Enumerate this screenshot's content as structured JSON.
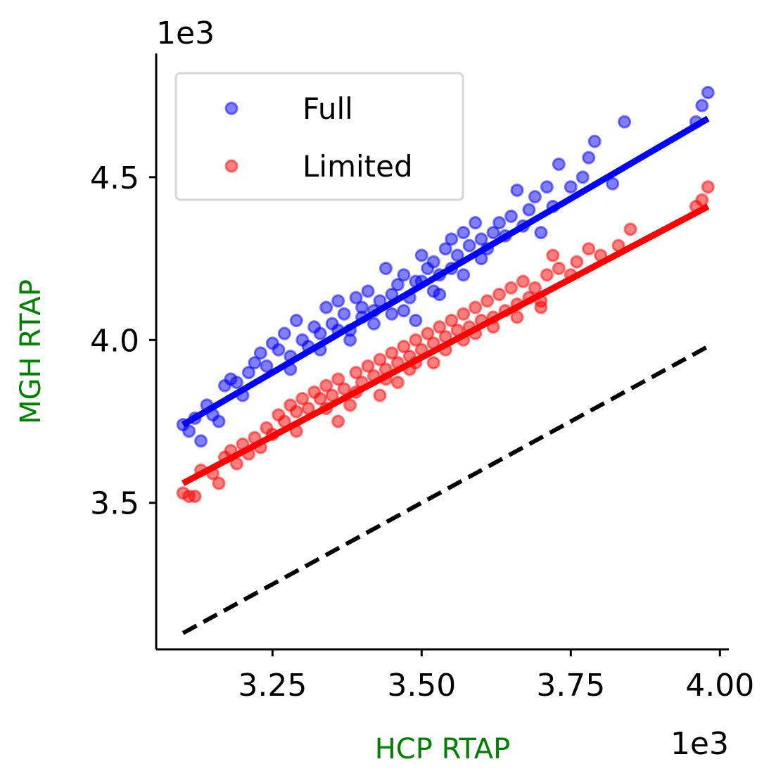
{
  "chart_data": {
    "type": "scatter",
    "xlabel": "HCP RTAP",
    "ylabel": "MGH RTAP",
    "x_offset_text": "1e3",
    "y_offset_text": "1e3",
    "axis_label_color": "#008000",
    "xlim": [
      3.055,
      4.015
    ],
    "ylim": [
      3.05,
      4.88
    ],
    "x_ticks": [
      {
        "value": 3.25,
        "label": "3.25"
      },
      {
        "value": 3.5,
        "label": "3.50"
      },
      {
        "value": 3.75,
        "label": "3.75"
      },
      {
        "value": 4.0,
        "label": "4.00"
      }
    ],
    "y_ticks": [
      {
        "value": 3.5,
        "label": "3.5"
      },
      {
        "value": 4.0,
        "label": "4.0"
      },
      {
        "value": 4.5,
        "label": "4.5"
      }
    ],
    "grid": false,
    "legend": {
      "placement": "top-left"
    },
    "series": [
      {
        "name": "Full",
        "color": "#0000ff",
        "fit": {
          "x": [
            3.1,
            3.98
          ],
          "y": [
            3.74,
            4.68
          ]
        },
        "points": [
          [
            3.1,
            3.74
          ],
          [
            3.11,
            3.72
          ],
          [
            3.12,
            3.76
          ],
          [
            3.13,
            3.69
          ],
          [
            3.14,
            3.8
          ],
          [
            3.15,
            3.77
          ],
          [
            3.16,
            3.75
          ],
          [
            3.17,
            3.86
          ],
          [
            3.18,
            3.88
          ],
          [
            3.19,
            3.87
          ],
          [
            3.2,
            3.83
          ],
          [
            3.21,
            3.9
          ],
          [
            3.22,
            3.93
          ],
          [
            3.23,
            3.96
          ],
          [
            3.24,
            3.92
          ],
          [
            3.25,
            3.99
          ],
          [
            3.26,
            3.97
          ],
          [
            3.27,
            4.02
          ],
          [
            3.28,
            3.95
          ],
          [
            3.29,
            4.06
          ],
          [
            3.3,
            4.0
          ],
          [
            3.31,
            3.98
          ],
          [
            3.32,
            4.04
          ],
          [
            3.33,
            4.02
          ],
          [
            3.34,
            4.1
          ],
          [
            3.35,
            4.05
          ],
          [
            3.36,
            4.12
          ],
          [
            3.37,
            4.08
          ],
          [
            3.38,
            4.03
          ],
          [
            3.39,
            4.13
          ],
          [
            3.4,
            4.1
          ],
          [
            3.41,
            4.15
          ],
          [
            3.42,
            4.05
          ],
          [
            3.43,
            4.12
          ],
          [
            3.44,
            4.22
          ],
          [
            3.45,
            4.14
          ],
          [
            3.46,
            4.17
          ],
          [
            3.47,
            4.2
          ],
          [
            3.48,
            4.13
          ],
          [
            3.49,
            4.18
          ],
          [
            3.5,
            4.26
          ],
          [
            3.51,
            4.22
          ],
          [
            3.52,
            4.24
          ],
          [
            3.53,
            4.2
          ],
          [
            3.54,
            4.28
          ],
          [
            3.55,
            4.31
          ],
          [
            3.56,
            4.26
          ],
          [
            3.57,
            4.33
          ],
          [
            3.58,
            4.29
          ],
          [
            3.59,
            4.36
          ],
          [
            3.6,
            4.31
          ],
          [
            3.61,
            4.28
          ],
          [
            3.62,
            4.33
          ],
          [
            3.63,
            4.36
          ],
          [
            3.64,
            4.32
          ],
          [
            3.65,
            4.38
          ],
          [
            3.66,
            4.46
          ],
          [
            3.67,
            4.35
          ],
          [
            3.68,
            4.4
          ],
          [
            3.69,
            4.44
          ],
          [
            3.7,
            4.33
          ],
          [
            3.71,
            4.47
          ],
          [
            3.72,
            4.41
          ],
          [
            3.73,
            4.54
          ],
          [
            3.75,
            4.47
          ],
          [
            3.77,
            4.5
          ],
          [
            3.78,
            4.56
          ],
          [
            3.79,
            4.61
          ],
          [
            3.82,
            4.48
          ],
          [
            3.84,
            4.67
          ],
          [
            3.96,
            4.67
          ],
          [
            3.97,
            4.72
          ],
          [
            3.98,
            4.76
          ],
          [
            3.36,
            4.03
          ],
          [
            3.42,
            4.09
          ],
          [
            3.47,
            4.09
          ],
          [
            3.52,
            4.15
          ],
          [
            3.57,
            4.2
          ],
          [
            3.33,
            3.97
          ],
          [
            3.28,
            3.91
          ],
          [
            3.4,
            4.07
          ],
          [
            3.45,
            4.08
          ],
          [
            3.55,
            4.22
          ],
          [
            3.6,
            4.25
          ],
          [
            3.5,
            4.18
          ],
          [
            3.38,
            4.0
          ],
          [
            3.53,
            4.14
          ],
          [
            3.49,
            4.06
          ]
        ]
      },
      {
        "name": "Limited",
        "color": "#ff0000",
        "fit": {
          "x": [
            3.1,
            3.98
          ],
          "y": [
            3.56,
            4.41
          ]
        },
        "points": [
          [
            3.1,
            3.53
          ],
          [
            3.11,
            3.52
          ],
          [
            3.12,
            3.52
          ],
          [
            3.13,
            3.6
          ],
          [
            3.15,
            3.59
          ],
          [
            3.16,
            3.56
          ],
          [
            3.17,
            3.64
          ],
          [
            3.18,
            3.66
          ],
          [
            3.19,
            3.62
          ],
          [
            3.2,
            3.68
          ],
          [
            3.21,
            3.65
          ],
          [
            3.22,
            3.7
          ],
          [
            3.23,
            3.67
          ],
          [
            3.24,
            3.73
          ],
          [
            3.25,
            3.71
          ],
          [
            3.26,
            3.77
          ],
          [
            3.27,
            3.75
          ],
          [
            3.28,
            3.8
          ],
          [
            3.29,
            3.78
          ],
          [
            3.3,
            3.82
          ],
          [
            3.31,
            3.79
          ],
          [
            3.32,
            3.84
          ],
          [
            3.33,
            3.82
          ],
          [
            3.34,
            3.86
          ],
          [
            3.35,
            3.83
          ],
          [
            3.36,
            3.88
          ],
          [
            3.37,
            3.85
          ],
          [
            3.38,
            3.8
          ],
          [
            3.39,
            3.9
          ],
          [
            3.4,
            3.87
          ],
          [
            3.41,
            3.92
          ],
          [
            3.42,
            3.89
          ],
          [
            3.43,
            3.94
          ],
          [
            3.44,
            3.91
          ],
          [
            3.45,
            3.96
          ],
          [
            3.46,
            3.93
          ],
          [
            3.47,
            3.98
          ],
          [
            3.48,
            3.95
          ],
          [
            3.49,
            4.0
          ],
          [
            3.5,
            3.97
          ],
          [
            3.51,
            4.02
          ],
          [
            3.52,
            3.99
          ],
          [
            3.53,
            4.04
          ],
          [
            3.54,
            4.01
          ],
          [
            3.55,
            4.06
          ],
          [
            3.56,
            4.03
          ],
          [
            3.57,
            4.08
          ],
          [
            3.58,
            4.04
          ],
          [
            3.59,
            4.1
          ],
          [
            3.6,
            4.06
          ],
          [
            3.61,
            4.12
          ],
          [
            3.62,
            4.07
          ],
          [
            3.63,
            4.14
          ],
          [
            3.64,
            4.09
          ],
          [
            3.65,
            4.16
          ],
          [
            3.66,
            4.11
          ],
          [
            3.67,
            4.18
          ],
          [
            3.68,
            4.13
          ],
          [
            3.69,
            4.16
          ],
          [
            3.7,
            4.1
          ],
          [
            3.71,
            4.2
          ],
          [
            3.72,
            4.26
          ],
          [
            3.73,
            4.22
          ],
          [
            3.75,
            4.2
          ],
          [
            3.76,
            4.24
          ],
          [
            3.78,
            4.28
          ],
          [
            3.8,
            4.26
          ],
          [
            3.83,
            4.29
          ],
          [
            3.85,
            4.34
          ],
          [
            3.96,
            4.41
          ],
          [
            3.97,
            4.43
          ],
          [
            3.98,
            4.47
          ],
          [
            3.29,
            3.72
          ],
          [
            3.34,
            3.79
          ],
          [
            3.39,
            3.84
          ],
          [
            3.44,
            3.88
          ],
          [
            3.49,
            3.93
          ],
          [
            3.54,
            3.97
          ],
          [
            3.59,
            4.02
          ],
          [
            3.46,
            3.87
          ],
          [
            3.52,
            3.93
          ],
          [
            3.57,
            4.0
          ],
          [
            3.36,
            3.75
          ],
          [
            3.43,
            3.83
          ],
          [
            3.48,
            3.91
          ],
          [
            3.62,
            4.04
          ],
          [
            3.66,
            4.07
          ],
          [
            3.7,
            4.12
          ]
        ]
      }
    ],
    "reference_line": {
      "style": "dashed",
      "color": "#000000",
      "x": [
        3.1,
        3.98
      ],
      "y": [
        3.1,
        3.98
      ]
    }
  }
}
